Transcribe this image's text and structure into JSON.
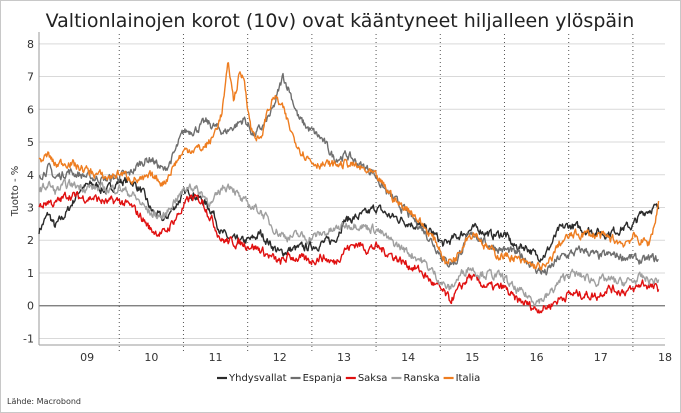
{
  "chart_data": {
    "type": "line",
    "title": "Valtionlainojen korot (10v) ovat kääntyneet hiljalleen ylöspäin",
    "ylabel": "Tuotto - %",
    "xlabel": "",
    "source": "Lähde: Macrobond",
    "ylim": [
      -1.2,
      8.3
    ],
    "yticks": [
      -1,
      0,
      1,
      2,
      3,
      4,
      5,
      6,
      7,
      8
    ],
    "xlim": [
      2008.75,
      2018.5
    ],
    "year_tick_labels": [
      "09",
      "10",
      "11",
      "12",
      "13",
      "14",
      "15",
      "16",
      "17",
      "18"
    ],
    "grid": true,
    "legend_position": "bottom",
    "series": [
      {
        "name": "Yhdysvallat",
        "color": "#2b2b2b",
        "points": [
          [
            2008.75,
            2.3
          ],
          [
            2008.9,
            2.8
          ],
          [
            2009.0,
            2.4
          ],
          [
            2009.2,
            2.9
          ],
          [
            2009.4,
            3.6
          ],
          [
            2009.6,
            3.7
          ],
          [
            2009.8,
            3.5
          ],
          [
            2010.0,
            3.8
          ],
          [
            2010.2,
            3.8
          ],
          [
            2010.35,
            3.5
          ],
          [
            2010.5,
            2.9
          ],
          [
            2010.7,
            2.6
          ],
          [
            2010.85,
            3.0
          ],
          [
            2011.0,
            3.4
          ],
          [
            2011.1,
            3.5
          ],
          [
            2011.3,
            3.2
          ],
          [
            2011.45,
            2.9
          ],
          [
            2011.6,
            2.2
          ],
          [
            2011.75,
            2.0
          ],
          [
            2011.9,
            1.95
          ],
          [
            2012.05,
            2.0
          ],
          [
            2012.2,
            2.2
          ],
          [
            2012.35,
            1.9
          ],
          [
            2012.5,
            1.6
          ],
          [
            2012.65,
            1.7
          ],
          [
            2012.8,
            1.75
          ],
          [
            2012.95,
            1.8
          ],
          [
            2013.15,
            1.9
          ],
          [
            2013.35,
            2.0
          ],
          [
            2013.5,
            2.6
          ],
          [
            2013.7,
            2.7
          ],
          [
            2013.85,
            2.8
          ],
          [
            2014.0,
            3.0
          ],
          [
            2014.2,
            2.75
          ],
          [
            2014.45,
            2.6
          ],
          [
            2014.7,
            2.4
          ],
          [
            2014.9,
            2.2
          ],
          [
            2015.05,
            1.85
          ],
          [
            2015.25,
            2.1
          ],
          [
            2015.45,
            2.3
          ],
          [
            2015.6,
            2.35
          ],
          [
            2015.8,
            2.15
          ],
          [
            2016.0,
            2.2
          ],
          [
            2016.15,
            1.8
          ],
          [
            2016.35,
            1.8
          ],
          [
            2016.5,
            1.5
          ],
          [
            2016.65,
            1.6
          ],
          [
            2016.85,
            2.3
          ],
          [
            2017.0,
            2.45
          ],
          [
            2017.2,
            2.35
          ],
          [
            2017.45,
            2.25
          ],
          [
            2017.6,
            2.2
          ],
          [
            2017.8,
            2.35
          ],
          [
            2018.0,
            2.45
          ],
          [
            2018.15,
            2.85
          ],
          [
            2018.3,
            3.0
          ],
          [
            2018.4,
            2.95
          ]
        ]
      },
      {
        "name": "Espanja",
        "color": "#6e6e6e",
        "points": [
          [
            2008.75,
            4.0
          ],
          [
            2008.9,
            4.2
          ],
          [
            2009.0,
            3.9
          ],
          [
            2009.2,
            4.1
          ],
          [
            2009.4,
            4.0
          ],
          [
            2009.6,
            3.9
          ],
          [
            2009.8,
            3.85
          ],
          [
            2010.0,
            3.95
          ],
          [
            2010.15,
            4.0
          ],
          [
            2010.35,
            4.4
          ],
          [
            2010.5,
            4.5
          ],
          [
            2010.7,
            4.1
          ],
          [
            2010.85,
            4.6
          ],
          [
            2011.0,
            5.3
          ],
          [
            2011.2,
            5.4
          ],
          [
            2011.35,
            5.6
          ],
          [
            2011.5,
            5.45
          ],
          [
            2011.65,
            5.3
          ],
          [
            2011.8,
            5.5
          ],
          [
            2011.95,
            5.7
          ],
          [
            2012.1,
            5.2
          ],
          [
            2012.25,
            5.5
          ],
          [
            2012.4,
            6.0
          ],
          [
            2012.55,
            7.0
          ],
          [
            2012.65,
            6.6
          ],
          [
            2012.8,
            5.7
          ],
          [
            2012.95,
            5.4
          ],
          [
            2013.15,
            5.1
          ],
          [
            2013.35,
            4.5
          ],
          [
            2013.55,
            4.6
          ],
          [
            2013.75,
            4.3
          ],
          [
            2013.95,
            4.1
          ],
          [
            2014.15,
            3.5
          ],
          [
            2014.35,
            3.1
          ],
          [
            2014.55,
            2.7
          ],
          [
            2014.75,
            2.3
          ],
          [
            2014.95,
            1.75
          ],
          [
            2015.1,
            1.3
          ],
          [
            2015.25,
            1.35
          ],
          [
            2015.4,
            2.0
          ],
          [
            2015.55,
            2.2
          ],
          [
            2015.7,
            1.9
          ],
          [
            2015.9,
            1.75
          ],
          [
            2016.1,
            1.65
          ],
          [
            2016.3,
            1.5
          ],
          [
            2016.5,
            1.1
          ],
          [
            2016.65,
            1.0
          ],
          [
            2016.85,
            1.45
          ],
          [
            2017.05,
            1.6
          ],
          [
            2017.25,
            1.7
          ],
          [
            2017.45,
            1.5
          ],
          [
            2017.65,
            1.55
          ],
          [
            2017.85,
            1.5
          ],
          [
            2018.0,
            1.45
          ],
          [
            2018.15,
            1.35
          ],
          [
            2018.3,
            1.45
          ],
          [
            2018.4,
            1.4
          ]
        ]
      },
      {
        "name": "Saksa",
        "color": "#e01010",
        "points": [
          [
            2008.75,
            3.0
          ],
          [
            2008.9,
            3.2
          ],
          [
            2009.0,
            3.1
          ],
          [
            2009.2,
            3.4
          ],
          [
            2009.4,
            3.3
          ],
          [
            2009.6,
            3.3
          ],
          [
            2009.8,
            3.15
          ],
          [
            2010.0,
            3.2
          ],
          [
            2010.2,
            3.0
          ],
          [
            2010.35,
            2.7
          ],
          [
            2010.5,
            2.3
          ],
          [
            2010.7,
            2.2
          ],
          [
            2010.85,
            2.6
          ],
          [
            2011.0,
            3.0
          ],
          [
            2011.1,
            3.3
          ],
          [
            2011.3,
            3.2
          ],
          [
            2011.45,
            2.6
          ],
          [
            2011.6,
            2.0
          ],
          [
            2011.75,
            1.95
          ],
          [
            2011.9,
            1.9
          ],
          [
            2012.05,
            1.85
          ],
          [
            2012.2,
            1.7
          ],
          [
            2012.35,
            1.5
          ],
          [
            2012.5,
            1.3
          ],
          [
            2012.65,
            1.5
          ],
          [
            2012.8,
            1.45
          ],
          [
            2012.95,
            1.35
          ],
          [
            2013.15,
            1.5
          ],
          [
            2013.35,
            1.3
          ],
          [
            2013.5,
            1.7
          ],
          [
            2013.7,
            1.9
          ],
          [
            2013.85,
            1.75
          ],
          [
            2014.0,
            1.8
          ],
          [
            2014.2,
            1.6
          ],
          [
            2014.45,
            1.3
          ],
          [
            2014.7,
            1.05
          ],
          [
            2014.9,
            0.65
          ],
          [
            2015.05,
            0.4
          ],
          [
            2015.15,
            0.15
          ],
          [
            2015.3,
            0.5
          ],
          [
            2015.45,
            0.9
          ],
          [
            2015.6,
            0.7
          ],
          [
            2015.8,
            0.55
          ],
          [
            2016.0,
            0.55
          ],
          [
            2016.15,
            0.2
          ],
          [
            2016.35,
            0.05
          ],
          [
            2016.5,
            -0.1
          ],
          [
            2016.65,
            -0.05
          ],
          [
            2016.85,
            0.2
          ],
          [
            2017.0,
            0.35
          ],
          [
            2017.2,
            0.35
          ],
          [
            2017.45,
            0.3
          ],
          [
            2017.6,
            0.55
          ],
          [
            2017.8,
            0.45
          ],
          [
            2018.0,
            0.45
          ],
          [
            2018.15,
            0.7
          ],
          [
            2018.3,
            0.55
          ],
          [
            2018.4,
            0.5
          ]
        ]
      },
      {
        "name": "Ranska",
        "color": "#a0a0a0",
        "points": [
          [
            2008.75,
            3.5
          ],
          [
            2008.9,
            3.7
          ],
          [
            2009.0,
            3.5
          ],
          [
            2009.2,
            3.7
          ],
          [
            2009.4,
            3.65
          ],
          [
            2009.6,
            3.6
          ],
          [
            2009.8,
            3.55
          ],
          [
            2010.0,
            3.6
          ],
          [
            2010.2,
            3.4
          ],
          [
            2010.35,
            3.1
          ],
          [
            2010.5,
            2.8
          ],
          [
            2010.7,
            2.7
          ],
          [
            2010.85,
            3.2
          ],
          [
            2011.0,
            3.5
          ],
          [
            2011.1,
            3.7
          ],
          [
            2011.3,
            3.4
          ],
          [
            2011.45,
            3.1
          ],
          [
            2011.6,
            3.6
          ],
          [
            2011.75,
            3.7
          ],
          [
            2011.9,
            3.2
          ],
          [
            2012.05,
            3.05
          ],
          [
            2012.2,
            2.9
          ],
          [
            2012.35,
            2.5
          ],
          [
            2012.5,
            2.2
          ],
          [
            2012.65,
            2.1
          ],
          [
            2012.8,
            2.15
          ],
          [
            2012.95,
            2.05
          ],
          [
            2013.15,
            2.2
          ],
          [
            2013.35,
            2.3
          ],
          [
            2013.5,
            2.45
          ],
          [
            2013.7,
            2.5
          ],
          [
            2013.85,
            2.4
          ],
          [
            2014.0,
            2.35
          ],
          [
            2014.2,
            2.0
          ],
          [
            2014.45,
            1.7
          ],
          [
            2014.7,
            1.4
          ],
          [
            2014.9,
            1.0
          ],
          [
            2015.05,
            0.65
          ],
          [
            2015.15,
            0.5
          ],
          [
            2015.3,
            0.9
          ],
          [
            2015.45,
            1.2
          ],
          [
            2015.6,
            1.0
          ],
          [
            2015.8,
            0.95
          ],
          [
            2016.0,
            0.85
          ],
          [
            2016.15,
            0.5
          ],
          [
            2016.35,
            0.3
          ],
          [
            2016.5,
            0.15
          ],
          [
            2016.65,
            0.25
          ],
          [
            2016.85,
            0.7
          ],
          [
            2017.0,
            1.0
          ],
          [
            2017.2,
            0.9
          ],
          [
            2017.45,
            0.75
          ],
          [
            2017.6,
            0.8
          ],
          [
            2017.8,
            0.7
          ],
          [
            2018.0,
            0.75
          ],
          [
            2018.15,
            0.85
          ],
          [
            2018.3,
            0.75
          ],
          [
            2018.4,
            0.8
          ]
        ]
      },
      {
        "name": "Italia",
        "color": "#ee7d20",
        "points": [
          [
            2008.75,
            4.4
          ],
          [
            2008.9,
            4.6
          ],
          [
            2009.0,
            4.3
          ],
          [
            2009.2,
            4.4
          ],
          [
            2009.4,
            4.2
          ],
          [
            2009.6,
            4.05
          ],
          [
            2009.8,
            3.9
          ],
          [
            2010.0,
            4.05
          ],
          [
            2010.2,
            3.9
          ],
          [
            2010.35,
            3.8
          ],
          [
            2010.5,
            3.95
          ],
          [
            2010.7,
            3.75
          ],
          [
            2010.85,
            4.3
          ],
          [
            2011.0,
            4.7
          ],
          [
            2011.1,
            4.8
          ],
          [
            2011.3,
            4.8
          ],
          [
            2011.45,
            5.1
          ],
          [
            2011.6,
            5.9
          ],
          [
            2011.7,
            7.4
          ],
          [
            2011.78,
            6.3
          ],
          [
            2011.88,
            7.1
          ],
          [
            2011.95,
            6.9
          ],
          [
            2012.05,
            5.4
          ],
          [
            2012.2,
            5.0
          ],
          [
            2012.3,
            5.9
          ],
          [
            2012.42,
            6.4
          ],
          [
            2012.55,
            6.0
          ],
          [
            2012.7,
            5.2
          ],
          [
            2012.85,
            4.7
          ],
          [
            2013.0,
            4.4
          ],
          [
            2013.2,
            4.3
          ],
          [
            2013.35,
            4.3
          ],
          [
            2013.55,
            4.35
          ],
          [
            2013.75,
            4.2
          ],
          [
            2013.95,
            4.0
          ],
          [
            2014.15,
            3.6
          ],
          [
            2014.35,
            3.1
          ],
          [
            2014.55,
            2.9
          ],
          [
            2014.75,
            2.4
          ],
          [
            2014.95,
            1.9
          ],
          [
            2015.1,
            1.3
          ],
          [
            2015.25,
            1.5
          ],
          [
            2015.4,
            2.1
          ],
          [
            2015.55,
            2.25
          ],
          [
            2015.7,
            1.8
          ],
          [
            2015.9,
            1.55
          ],
          [
            2016.1,
            1.5
          ],
          [
            2016.3,
            1.3
          ],
          [
            2016.5,
            1.2
          ],
          [
            2016.65,
            1.15
          ],
          [
            2016.85,
            1.9
          ],
          [
            2017.05,
            2.15
          ],
          [
            2017.25,
            2.2
          ],
          [
            2017.45,
            2.15
          ],
          [
            2017.65,
            2.05
          ],
          [
            2017.85,
            1.9
          ],
          [
            2018.0,
            2.1
          ],
          [
            2018.1,
            2.0
          ],
          [
            2018.25,
            1.9
          ],
          [
            2018.35,
            2.6
          ],
          [
            2018.4,
            3.2
          ]
        ]
      }
    ]
  }
}
